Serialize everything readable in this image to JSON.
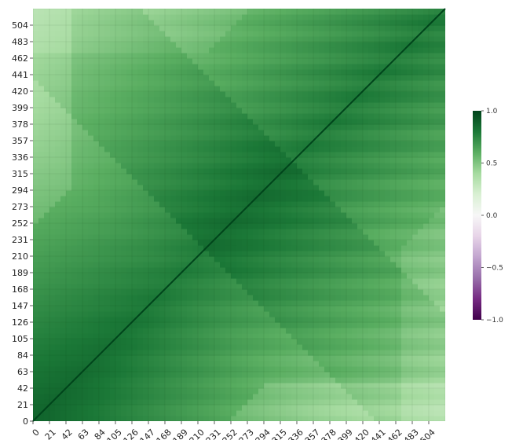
{
  "chart_data": {
    "type": "heatmap",
    "title": "",
    "xlabel": "",
    "ylabel": "",
    "size": 525,
    "xlim": [
      0,
      525
    ],
    "ylim": [
      0,
      525
    ],
    "grid": false,
    "diagonal_value": 1.0,
    "x_tick_labels": [
      "0",
      "21",
      "42",
      "63",
      "84",
      "105",
      "126",
      "147",
      "168",
      "189",
      "210",
      "231",
      "252",
      "273",
      "294",
      "315",
      "336",
      "357",
      "378",
      "399",
      "420",
      "441",
      "462",
      "483",
      "504"
    ],
    "y_tick_labels": [
      "0",
      "21",
      "42",
      "63",
      "84",
      "105",
      "126",
      "147",
      "168",
      "189",
      "210",
      "231",
      "252",
      "273",
      "294",
      "315",
      "336",
      "357",
      "378",
      "399",
      "420",
      "441",
      "462",
      "483",
      "504"
    ],
    "colorbar": {
      "colormap": "PRGn",
      "vmin": -1.0,
      "vmax": 1.0,
      "tick_labels": [
        "1.0",
        "0.5",
        "0.0",
        "−0.5",
        "−1.0"
      ],
      "tick_values": [
        1.0,
        0.5,
        0.0,
        -0.5,
        -1.0
      ]
    },
    "colors": {
      "most_negative": "#40004b",
      "neutral": "#f7f7f7",
      "most_positive": "#00441b"
    }
  }
}
